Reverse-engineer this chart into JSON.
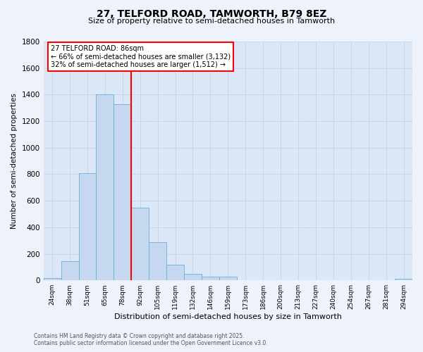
{
  "title_line1": "27, TELFORD ROAD, TAMWORTH, B79 8EZ",
  "title_line2": "Size of property relative to semi-detached houses in Tamworth",
  "xlabel": "Distribution of semi-detached houses by size in Tamworth",
  "ylabel": "Number of semi-detached properties",
  "categories": [
    "24sqm",
    "38sqm",
    "51sqm",
    "65sqm",
    "78sqm",
    "92sqm",
    "105sqm",
    "119sqm",
    "132sqm",
    "146sqm",
    "159sqm",
    "173sqm",
    "186sqm",
    "200sqm",
    "213sqm",
    "227sqm",
    "240sqm",
    "254sqm",
    "267sqm",
    "281sqm",
    "294sqm"
  ],
  "values": [
    15,
    145,
    810,
    1400,
    1330,
    550,
    290,
    120,
    50,
    25,
    25,
    0,
    0,
    0,
    0,
    0,
    0,
    0,
    0,
    0,
    10
  ],
  "bar_color": "#c5d8f0",
  "bar_edgecolor": "#6aaed6",
  "vline_x_index": 4.5,
  "vline_color": "red",
  "annotation_title": "27 TELFORD ROAD: 86sqm",
  "annotation_line2": "← 66% of semi-detached houses are smaller (3,132)",
  "annotation_line3": "32% of semi-detached houses are larger (1,512) →",
  "ylim": [
    0,
    1800
  ],
  "yticks": [
    0,
    200,
    400,
    600,
    800,
    1000,
    1200,
    1400,
    1600,
    1800
  ],
  "ax_bg_color": "#dce8f8",
  "fig_bg_color": "#eef2fb",
  "grid_color": "#c8d8ec",
  "footer_line1": "Contains HM Land Registry data © Crown copyright and database right 2025.",
  "footer_line2": "Contains public sector information licensed under the Open Government Licence v3.0."
}
